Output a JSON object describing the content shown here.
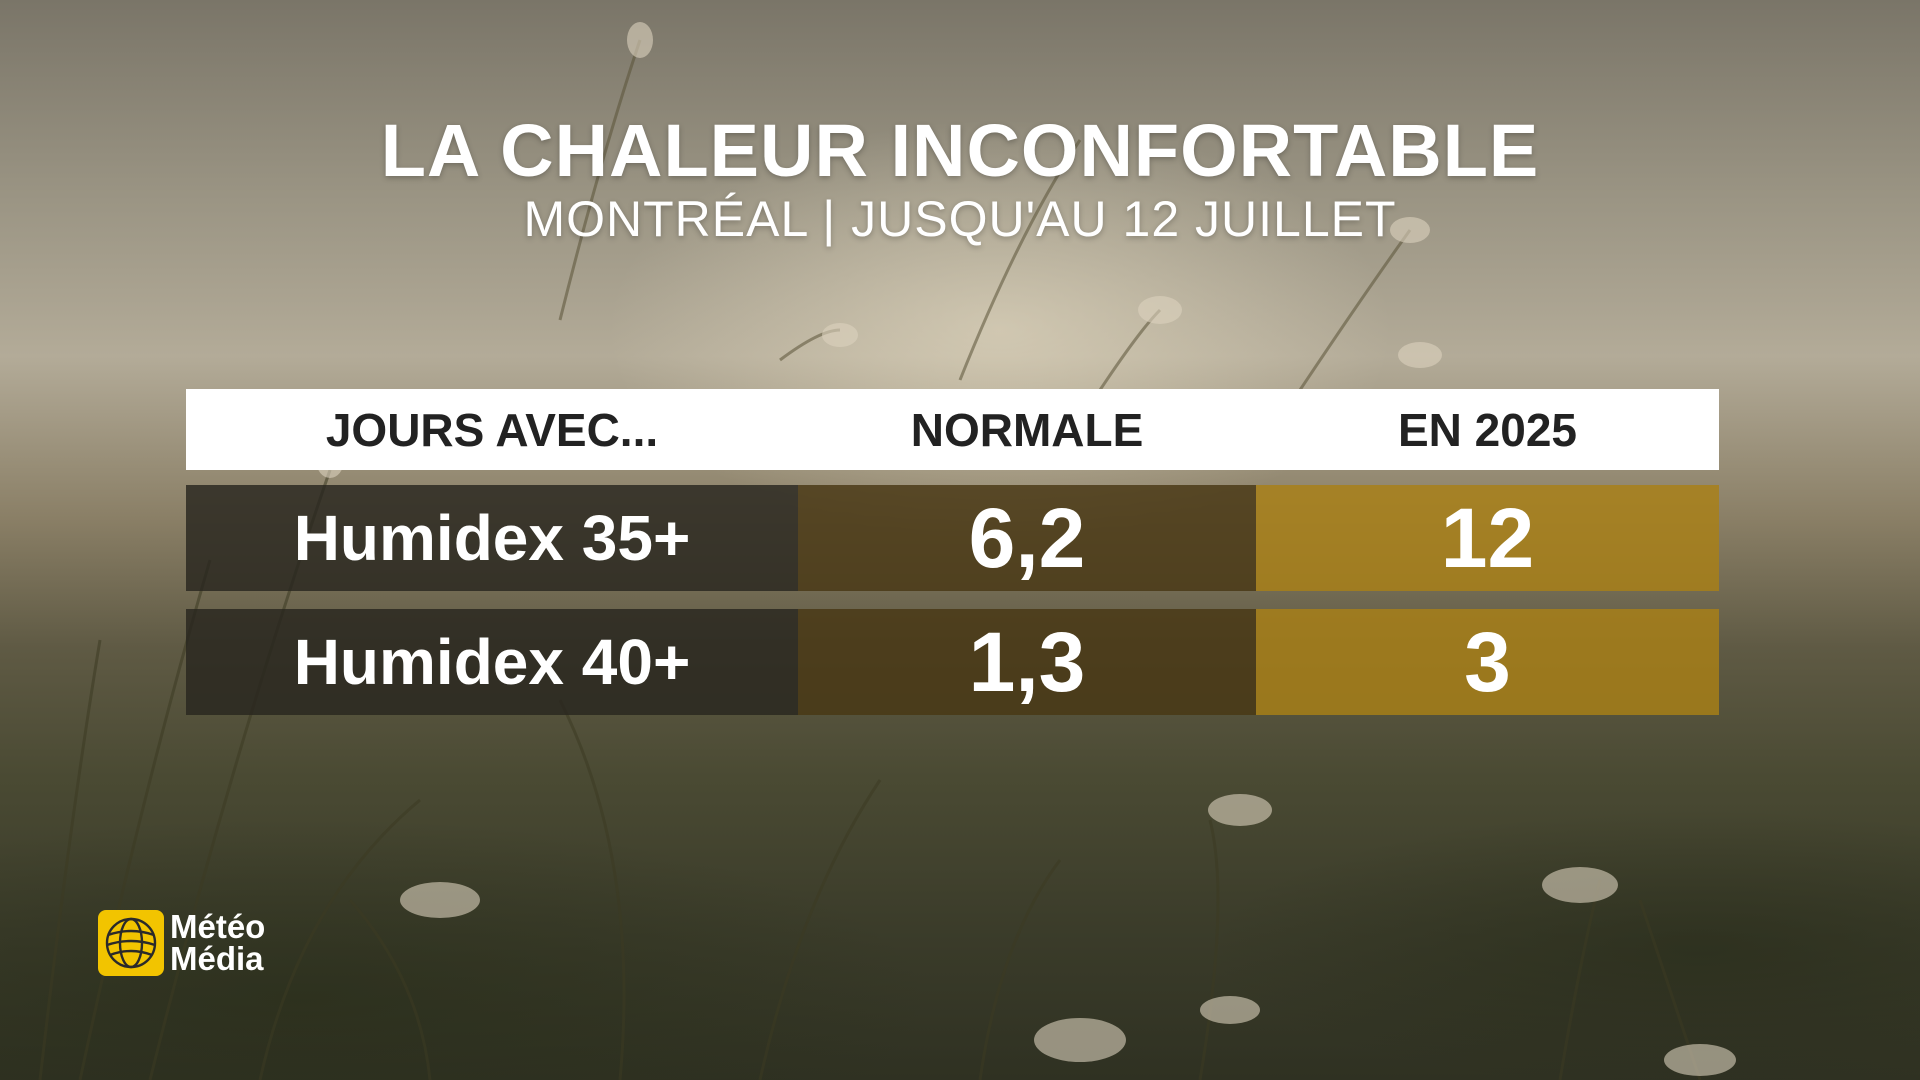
{
  "title": "LA CHALEUR INCONFORTABLE",
  "subtitle": "MONTRÉAL | JUSQU'AU 12 JUILLET",
  "table": {
    "headers": [
      "JOURS AVEC...",
      "NORMALE",
      "EN 2025"
    ],
    "rows": [
      {
        "label": "Humidex 35+",
        "normale": "6,2",
        "en2025": "12"
      },
      {
        "label": "Humidex 40+",
        "normale": "1,3",
        "en2025": "3"
      }
    ]
  },
  "logo": {
    "line1": "Météo",
    "line2": "Média",
    "icon": "globe-icon"
  },
  "colors": {
    "brand_yellow": "#f2c400",
    "dark_cell": "#28261e",
    "brown_cell": "#483714",
    "gold_cell": "#aa8016"
  }
}
